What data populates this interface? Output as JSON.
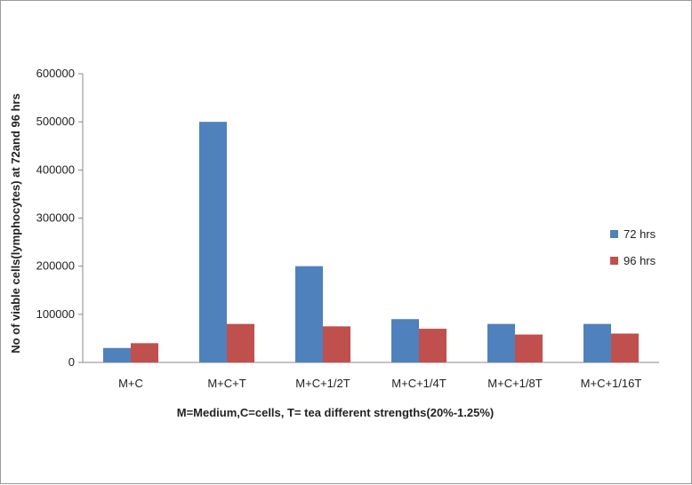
{
  "chart_data": {
    "type": "bar",
    "title": "",
    "xlabel": "M=Medium,C=cells, T= tea  different strengths(20%-1.25%)",
    "ylabel": "No of viable cells(lymphocytes) at 72and 96 hrs",
    "categories": [
      "M+C",
      "M+C+T",
      "M+C+1/2T",
      "M+C+1/4T",
      "M+C+1/8T",
      "M+C+1/16T"
    ],
    "series": [
      {
        "name": "72 hrs",
        "color": "#4F81BD",
        "values": [
          30000,
          500000,
          200000,
          90000,
          80000,
          80000
        ]
      },
      {
        "name": "96 hrs",
        "color": "#C0504D",
        "values": [
          40000,
          80000,
          75000,
          70000,
          58000,
          60000
        ]
      }
    ],
    "ylim": [
      0,
      600000
    ],
    "yticks": [
      0,
      100000,
      200000,
      300000,
      400000,
      500000,
      600000
    ],
    "ytick_labels": [
      "0",
      "100000",
      "200000",
      "300000",
      "400000",
      "500000",
      "600000"
    ],
    "grid": false,
    "legend_position": "right"
  }
}
